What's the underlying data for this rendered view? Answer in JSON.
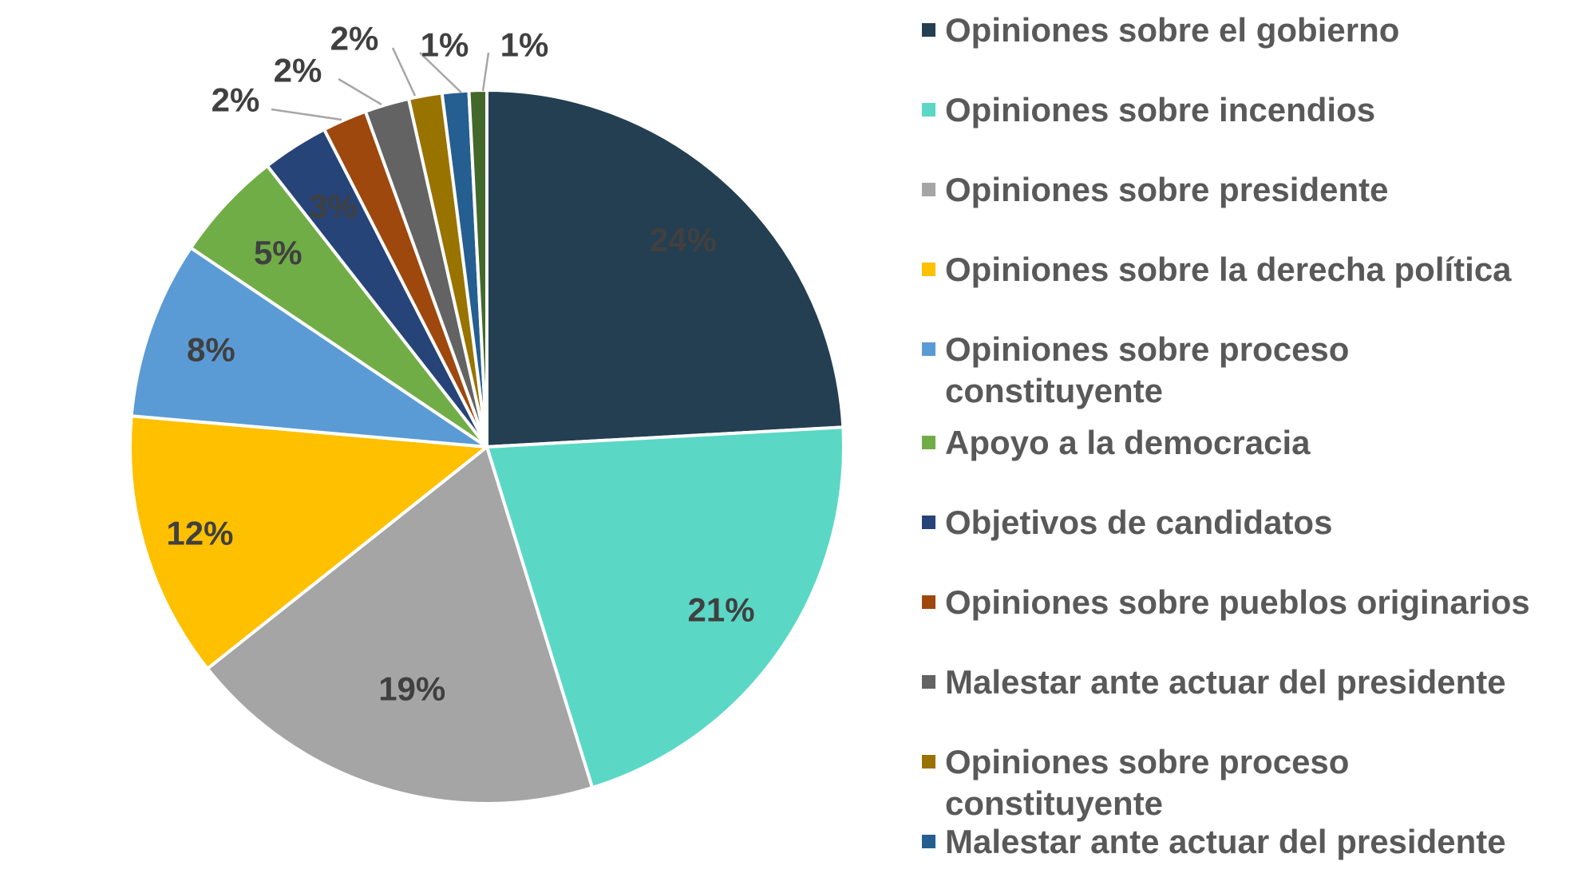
{
  "chart_data": {
    "type": "pie",
    "title": "",
    "slices": [
      {
        "label": "Opiniones sobre el gobierno",
        "value": 24,
        "display": "24%",
        "color": "#243f51"
      },
      {
        "label": "Opiniones sobre incendios",
        "value": 21,
        "display": "21%",
        "color": "#5ad8c5"
      },
      {
        "label": "Opiniones sobre presidente",
        "value": 19,
        "display": "19%",
        "color": "#a5a5a5"
      },
      {
        "label": "Opiniones sobre la derecha política",
        "value": 12,
        "display": "12%",
        "color": "#ffc000"
      },
      {
        "label": "Opiniones sobre proceso constituyente",
        "value": 8,
        "display": "8%",
        "color": "#5b9bd5"
      },
      {
        "label": "Apoyo a la democracia",
        "value": 5,
        "display": "5%",
        "color": "#70ad47"
      },
      {
        "label": "Objetivos de candidatos",
        "value": 3,
        "display": "3%",
        "color": "#264478"
      },
      {
        "label": "Opiniones sobre pueblos originarios",
        "value": 2,
        "display": "2%",
        "color": "#9e480e"
      },
      {
        "label": "Malestar ante actuar del presidente",
        "value": 2,
        "display": "2%",
        "color": "#636363"
      },
      {
        "label": "Opiniones sobre proceso constituyente",
        "value": 1.5,
        "display": "2%",
        "color": "#997300"
      },
      {
        "label": "Malestar ante actuar del presidente",
        "value": 1.2,
        "display": "1%",
        "color": "#255e91"
      },
      {
        "label": "",
        "value": 0.8,
        "display": "1%",
        "color": "#43682b"
      }
    ],
    "legend_position": "right"
  }
}
